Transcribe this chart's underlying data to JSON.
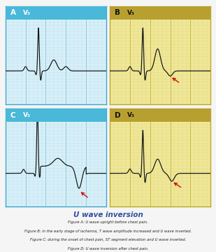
{
  "title": "U wave inversion",
  "captions": [
    "Figure A: U wave upright before chest pain.",
    "Figure B: in the early stage of ischemia, T wave amplitude increased and U wave inverted.",
    "Figure C: during the onset of chest pain, ST segment elevation and U wave inverted.",
    "Figure D: U wave inversion after chest pain."
  ],
  "panel_labels": [
    "A",
    "B",
    "C",
    "D"
  ],
  "lead_label": "V₃",
  "header_colors_blue": "#4ab8d8",
  "header_colors_gold": "#b8a030",
  "panel_bg_blue": "#d8f0f8",
  "panel_bg_gold": "#f0e898",
  "grid_minor_blue": "#b8ddf0",
  "grid_major_blue": "#90c8e0",
  "grid_minor_gold": "#ddd080",
  "grid_major_gold": "#c8b840",
  "border_blue": "#40a8cc",
  "border_gold": "#c0a828",
  "figure_bg": "#f5f5f5",
  "ecg_color": "#111111",
  "arrow_color": "#cc1010",
  "title_color": "#3050a0",
  "caption_color": "#222222",
  "label_color_blue": "#ffffff",
  "label_color_gold": "#111111"
}
